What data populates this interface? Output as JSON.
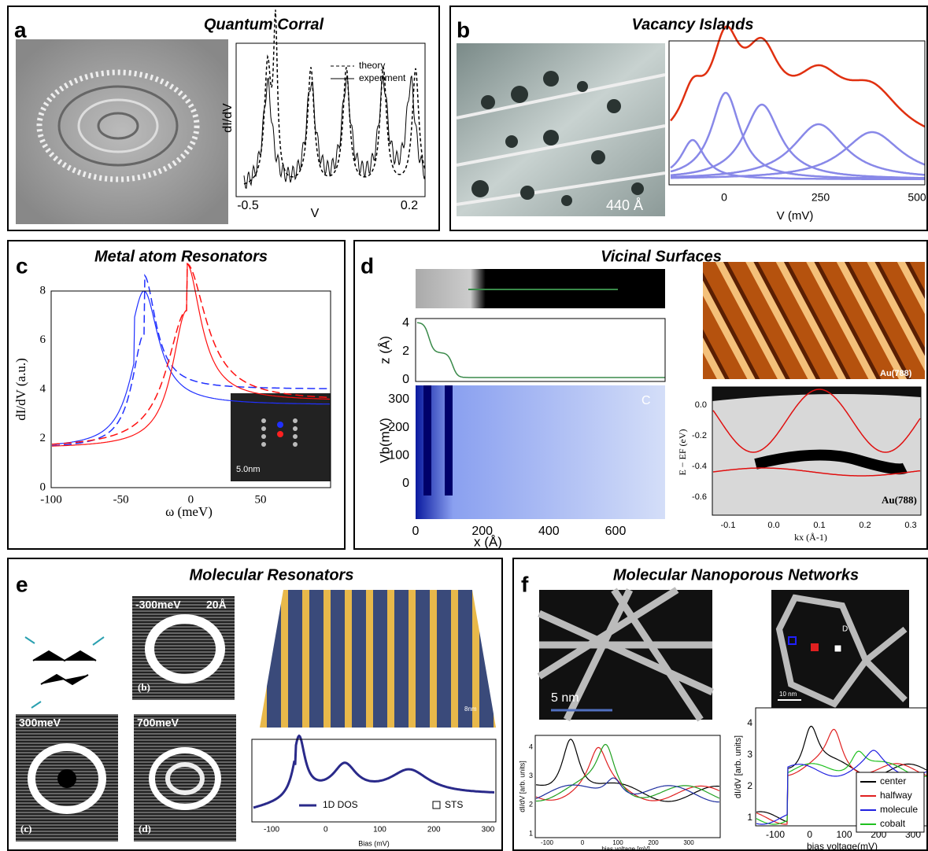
{
  "panels": [
    {
      "letter": "a",
      "title": "Quantum Corral",
      "plot": {
        "ylabel": "dI/dV",
        "xlabel": "V",
        "xticks": [
          "-0.5",
          "0.2"
        ],
        "legend": [
          "theory",
          "experiment"
        ]
      }
    },
    {
      "letter": "b",
      "title": "Vacancy Islands",
      "image_label": "440 Å",
      "plot": {
        "xlabel": "V  (mV)",
        "xticks": [
          "0",
          "250",
          "500"
        ]
      }
    },
    {
      "letter": "c",
      "title": "Metal atom Resonators",
      "inset_label": "5.0nm",
      "plot": {
        "ylabel": "dI/dV (a.u.)",
        "xlabel": "ω (meV)",
        "xticks": [
          "-100",
          "-50",
          "0",
          "50"
        ],
        "yticks": [
          "0",
          "2",
          "4",
          "6",
          "8"
        ]
      }
    },
    {
      "letter": "d",
      "title": "Vicinal Surfaces",
      "z_plot": {
        "ylabel": "z (Å)",
        "yticks": [
          "0",
          "2",
          "4"
        ]
      },
      "map": {
        "ylabel": "Vb(mV)",
        "xlabel": "x (Å)",
        "label": "C",
        "xticks": [
          "0",
          "200",
          "400",
          "600"
        ],
        "yticks": [
          "0",
          "100",
          "200",
          "300"
        ]
      },
      "image_label": "Au(788)",
      "band": {
        "ylabel": "E − EF (eV)",
        "xlabel": "kx (Å-1)",
        "label": "Au(788)",
        "xticks": [
          "-0.1",
          "0.0",
          "0.1",
          "0.2",
          "0.3"
        ],
        "yticks": [
          "0.0",
          "-0.2",
          "-0.4",
          "-0.6"
        ]
      }
    },
    {
      "letter": "e",
      "title": "Molecular Resonators",
      "images": [
        {
          "energy": "-300meV",
          "scale": "20Å",
          "tag": "(b)"
        },
        {
          "energy": "300meV",
          "tag": "(c)"
        },
        {
          "energy": "700meV",
          "tag": "(d)"
        }
      ],
      "scale_3d": "8nm",
      "plot": {
        "legend": [
          "1D DOS",
          "STS"
        ],
        "xlabel": "Bias (mV)",
        "xticks": [
          "-100",
          "0",
          "100",
          "200",
          "300"
        ]
      }
    },
    {
      "letter": "f",
      "title": "Molecular Nanoporous Networks",
      "image1_scale": "5 nm",
      "image2": {
        "scale": "10 nm",
        "label": "D"
      },
      "left_plot": {
        "ylabel": "dI/dV [arb. units]",
        "xlabel": "bias voltage [mV]",
        "xticks": [
          "-100",
          "0",
          "100",
          "200",
          "300"
        ],
        "yticks": [
          "1",
          "2",
          "3",
          "4"
        ]
      },
      "right_plot": {
        "ylabel": "dI/dV [arb. units]",
        "xlabel": "bias voltage(mV)",
        "xticks": [
          "-100",
          "0",
          "100",
          "200",
          "300"
        ],
        "yticks": [
          "1",
          "2",
          "3",
          "4"
        ],
        "legend": [
          "center",
          "halfway",
          "molecule",
          "cobalt"
        ]
      }
    }
  ]
}
